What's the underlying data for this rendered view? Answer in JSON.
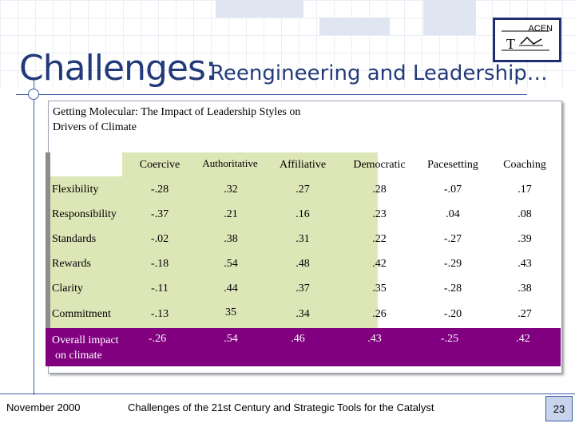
{
  "slide": {
    "title_main": "Challenges:",
    "title_sub": "Reengineering and Leadership…",
    "logo_text": "ACEN",
    "panel_title": "Getting Molecular: The Impact of Leadership Styles on Drivers of Climate"
  },
  "table": {
    "columns": [
      "Coercive",
      "Authoritative",
      "Affiliative",
      "Democratic",
      "Pacesetting",
      "Coaching"
    ],
    "rows": [
      {
        "label": "Flexibility",
        "values": [
          "-.28",
          ".32",
          ".27",
          ".28",
          "-.07",
          ".17"
        ]
      },
      {
        "label": "Responsibility",
        "values": [
          "-.37",
          ".21",
          ".16",
          ".23",
          ".04",
          ".08"
        ]
      },
      {
        "label": "Standards",
        "values": [
          "-.02",
          ".38",
          ".31",
          ".22",
          "-.27",
          ".39"
        ]
      },
      {
        "label": "Rewards",
        "values": [
          "-.18",
          ".54",
          ".48",
          ".42",
          "-.29",
          ".43"
        ]
      },
      {
        "label": "Clarity",
        "values": [
          "-.11",
          ".44",
          ".37",
          ".35",
          "-.28",
          ".38"
        ]
      },
      {
        "label": "Commitment",
        "values": [
          "-.13",
          "35",
          ".34",
          ".26",
          "-.20",
          ".27"
        ]
      }
    ],
    "impact": {
      "label_line1": "Overall impact",
      "label_line2": "on climate",
      "values": [
        "-.26",
        ".54",
        ".46",
        ".43",
        "-.25",
        ".42"
      ]
    }
  },
  "footer": {
    "date": "November 2000",
    "caption": "Challenges of the 21st Century and Strategic Tools for the Catalyst",
    "page_number": "23"
  },
  "colors": {
    "title": "#233a7a",
    "row_fill": "#dde6b7",
    "impact_fill": "#800080"
  }
}
